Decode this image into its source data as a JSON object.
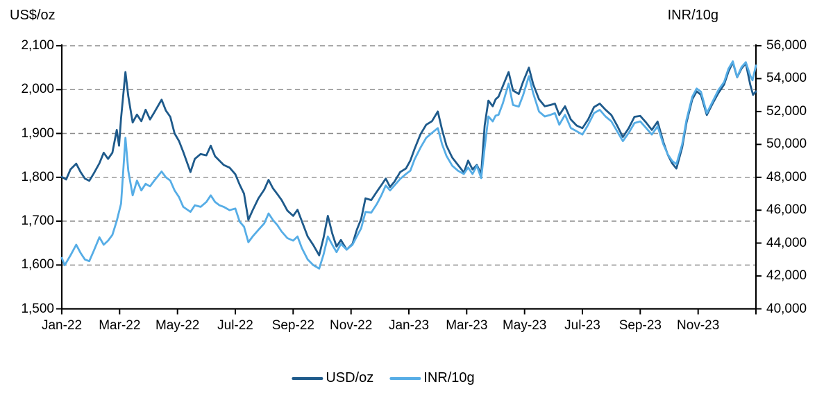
{
  "page": {
    "background": "#ffffff"
  },
  "chart_data": {
    "type": "line",
    "title": "",
    "left_axis": {
      "title": "US$/oz",
      "min": 1500,
      "max": 2100,
      "tick_step": 100,
      "ticks": [
        1500,
        1600,
        1700,
        1800,
        1900,
        2000,
        2100
      ]
    },
    "right_axis": {
      "title": "INR/10g",
      "min": 40000,
      "max": 56000,
      "tick_step": 2000,
      "ticks": [
        40000,
        42000,
        44000,
        46000,
        48000,
        50000,
        52000,
        54000,
        56000
      ]
    },
    "x_axis": {
      "range_months": [
        0,
        24
      ],
      "labels": [
        "Jan-22",
        "Mar-22",
        "May-22",
        "Jul-22",
        "Sep-22",
        "Nov-22",
        "Jan-23",
        "Mar-23",
        "May-23",
        "Jul-23",
        "Sep-23",
        "Nov-23"
      ],
      "label_positions": [
        0,
        2,
        4,
        6,
        8,
        10,
        12,
        14,
        16,
        18,
        20,
        22
      ]
    },
    "grid": {
      "values": [
        1600,
        1700,
        1800,
        1900,
        2000,
        2100
      ],
      "style": "dashed",
      "color": "#8c8c8c"
    },
    "axis_color": "#000000",
    "legend_position": "bottom",
    "series": [
      {
        "name": "USD/oz",
        "axis": "left",
        "color": "#1e5a8b",
        "points": [
          [
            0.0,
            1801
          ],
          [
            0.15,
            1795
          ],
          [
            0.3,
            1818
          ],
          [
            0.5,
            1831
          ],
          [
            0.65,
            1812
          ],
          [
            0.8,
            1797
          ],
          [
            0.95,
            1792
          ],
          [
            1.1,
            1808
          ],
          [
            1.3,
            1832
          ],
          [
            1.45,
            1856
          ],
          [
            1.6,
            1842
          ],
          [
            1.75,
            1856
          ],
          [
            1.9,
            1908
          ],
          [
            1.98,
            1872
          ],
          [
            2.05,
            1935
          ],
          [
            2.2,
            2040
          ],
          [
            2.3,
            1985
          ],
          [
            2.45,
            1925
          ],
          [
            2.6,
            1943
          ],
          [
            2.75,
            1928
          ],
          [
            2.9,
            1954
          ],
          [
            3.05,
            1932
          ],
          [
            3.2,
            1948
          ],
          [
            3.45,
            1977
          ],
          [
            3.6,
            1952
          ],
          [
            3.75,
            1938
          ],
          [
            3.9,
            1900
          ],
          [
            4.05,
            1883
          ],
          [
            4.2,
            1858
          ],
          [
            4.45,
            1812
          ],
          [
            4.6,
            1842
          ],
          [
            4.8,
            1853
          ],
          [
            5.0,
            1850
          ],
          [
            5.15,
            1872
          ],
          [
            5.3,
            1848
          ],
          [
            5.45,
            1838
          ],
          [
            5.6,
            1828
          ],
          [
            5.8,
            1822
          ],
          [
            6.0,
            1807
          ],
          [
            6.15,
            1783
          ],
          [
            6.3,
            1763
          ],
          [
            6.45,
            1703
          ],
          [
            6.6,
            1725
          ],
          [
            6.8,
            1752
          ],
          [
            7.0,
            1772
          ],
          [
            7.15,
            1794
          ],
          [
            7.3,
            1775
          ],
          [
            7.45,
            1762
          ],
          [
            7.6,
            1748
          ],
          [
            7.8,
            1724
          ],
          [
            8.0,
            1712
          ],
          [
            8.15,
            1726
          ],
          [
            8.3,
            1700
          ],
          [
            8.5,
            1665
          ],
          [
            8.7,
            1645
          ],
          [
            8.9,
            1622
          ],
          [
            9.05,
            1662
          ],
          [
            9.2,
            1712
          ],
          [
            9.35,
            1672
          ],
          [
            9.5,
            1642
          ],
          [
            9.65,
            1657
          ],
          [
            9.85,
            1635
          ],
          [
            10.05,
            1648
          ],
          [
            10.2,
            1680
          ],
          [
            10.35,
            1705
          ],
          [
            10.5,
            1752
          ],
          [
            10.7,
            1748
          ],
          [
            10.9,
            1768
          ],
          [
            11.05,
            1782
          ],
          [
            11.2,
            1797
          ],
          [
            11.35,
            1778
          ],
          [
            11.5,
            1790
          ],
          [
            11.7,
            1812
          ],
          [
            11.9,
            1820
          ],
          [
            12.05,
            1838
          ],
          [
            12.2,
            1865
          ],
          [
            12.4,
            1898
          ],
          [
            12.6,
            1920
          ],
          [
            12.8,
            1928
          ],
          [
            13.0,
            1950
          ],
          [
            13.15,
            1908
          ],
          [
            13.3,
            1872
          ],
          [
            13.5,
            1845
          ],
          [
            13.7,
            1828
          ],
          [
            13.9,
            1811
          ],
          [
            14.05,
            1838
          ],
          [
            14.2,
            1818
          ],
          [
            14.35,
            1828
          ],
          [
            14.5,
            1808
          ],
          [
            14.62,
            1918
          ],
          [
            14.75,
            1975
          ],
          [
            14.9,
            1962
          ],
          [
            15.0,
            1978
          ],
          [
            15.1,
            1984
          ],
          [
            15.25,
            2008
          ],
          [
            15.45,
            2040
          ],
          [
            15.6,
            1998
          ],
          [
            15.8,
            1990
          ],
          [
            15.95,
            2018
          ],
          [
            16.15,
            2050
          ],
          [
            16.3,
            2012
          ],
          [
            16.5,
            1978
          ],
          [
            16.7,
            1962
          ],
          [
            16.9,
            1965
          ],
          [
            17.05,
            1968
          ],
          [
            17.2,
            1942
          ],
          [
            17.4,
            1962
          ],
          [
            17.6,
            1932
          ],
          [
            17.8,
            1918
          ],
          [
            18.0,
            1912
          ],
          [
            18.2,
            1932
          ],
          [
            18.4,
            1960
          ],
          [
            18.6,
            1968
          ],
          [
            18.8,
            1954
          ],
          [
            19.0,
            1942
          ],
          [
            19.2,
            1918
          ],
          [
            19.4,
            1892
          ],
          [
            19.6,
            1912
          ],
          [
            19.8,
            1938
          ],
          [
            20.0,
            1940
          ],
          [
            20.2,
            1925
          ],
          [
            20.4,
            1908
          ],
          [
            20.6,
            1927
          ],
          [
            20.8,
            1880
          ],
          [
            20.95,
            1852
          ],
          [
            21.1,
            1832
          ],
          [
            21.25,
            1820
          ],
          [
            21.45,
            1868
          ],
          [
            21.6,
            1925
          ],
          [
            21.8,
            1978
          ],
          [
            21.95,
            1996
          ],
          [
            22.1,
            1988
          ],
          [
            22.3,
            1942
          ],
          [
            22.5,
            1968
          ],
          [
            22.7,
            1992
          ],
          [
            22.9,
            2012
          ],
          [
            23.05,
            2041
          ],
          [
            23.2,
            2062
          ],
          [
            23.35,
            2028
          ],
          [
            23.5,
            2048
          ],
          [
            23.65,
            2060
          ],
          [
            23.8,
            2012
          ],
          [
            23.9,
            1988
          ],
          [
            24.0,
            1996
          ]
        ]
      },
      {
        "name": "INR/10g",
        "axis": "right",
        "color": "#56ade6",
        "points": [
          [
            0.0,
            43100
          ],
          [
            0.1,
            42650
          ],
          [
            0.3,
            43250
          ],
          [
            0.5,
            43900
          ],
          [
            0.65,
            43400
          ],
          [
            0.8,
            43000
          ],
          [
            0.95,
            42900
          ],
          [
            1.1,
            43500
          ],
          [
            1.3,
            44350
          ],
          [
            1.45,
            43900
          ],
          [
            1.6,
            44150
          ],
          [
            1.75,
            44500
          ],
          [
            1.9,
            45350
          ],
          [
            2.05,
            46400
          ],
          [
            2.2,
            50400
          ],
          [
            2.3,
            48400
          ],
          [
            2.45,
            46900
          ],
          [
            2.6,
            47800
          ],
          [
            2.75,
            47200
          ],
          [
            2.9,
            47600
          ],
          [
            3.05,
            47450
          ],
          [
            3.2,
            47800
          ],
          [
            3.45,
            48350
          ],
          [
            3.6,
            48000
          ],
          [
            3.75,
            47800
          ],
          [
            3.9,
            47200
          ],
          [
            4.05,
            46800
          ],
          [
            4.2,
            46200
          ],
          [
            4.45,
            45900
          ],
          [
            4.6,
            46300
          ],
          [
            4.8,
            46200
          ],
          [
            5.0,
            46500
          ],
          [
            5.15,
            46900
          ],
          [
            5.3,
            46500
          ],
          [
            5.45,
            46300
          ],
          [
            5.6,
            46200
          ],
          [
            5.8,
            46000
          ],
          [
            6.0,
            46100
          ],
          [
            6.15,
            45300
          ],
          [
            6.3,
            45000
          ],
          [
            6.45,
            44050
          ],
          [
            6.6,
            44400
          ],
          [
            6.8,
            44800
          ],
          [
            7.0,
            45200
          ],
          [
            7.15,
            45800
          ],
          [
            7.3,
            45400
          ],
          [
            7.45,
            45100
          ],
          [
            7.6,
            44700
          ],
          [
            7.8,
            44300
          ],
          [
            8.0,
            44150
          ],
          [
            8.15,
            44400
          ],
          [
            8.3,
            43700
          ],
          [
            8.5,
            43000
          ],
          [
            8.7,
            42650
          ],
          [
            8.9,
            42450
          ],
          [
            9.05,
            43300
          ],
          [
            9.2,
            44400
          ],
          [
            9.35,
            43900
          ],
          [
            9.5,
            43450
          ],
          [
            9.65,
            43950
          ],
          [
            9.85,
            43600
          ],
          [
            10.05,
            43900
          ],
          [
            10.2,
            44400
          ],
          [
            10.35,
            44900
          ],
          [
            10.5,
            45900
          ],
          [
            10.7,
            45850
          ],
          [
            10.9,
            46400
          ],
          [
            11.05,
            46900
          ],
          [
            11.2,
            47500
          ],
          [
            11.35,
            47200
          ],
          [
            11.5,
            47500
          ],
          [
            11.7,
            47900
          ],
          [
            11.9,
            48200
          ],
          [
            12.05,
            48400
          ],
          [
            12.2,
            49100
          ],
          [
            12.4,
            49800
          ],
          [
            12.6,
            50400
          ],
          [
            12.8,
            50700
          ],
          [
            13.0,
            50990
          ],
          [
            13.15,
            50000
          ],
          [
            13.3,
            49300
          ],
          [
            13.5,
            48700
          ],
          [
            13.7,
            48400
          ],
          [
            13.9,
            48200
          ],
          [
            14.05,
            48600
          ],
          [
            14.2,
            48200
          ],
          [
            14.35,
            48700
          ],
          [
            14.5,
            47950
          ],
          [
            14.62,
            49800
          ],
          [
            14.75,
            51700
          ],
          [
            14.9,
            51400
          ],
          [
            15.0,
            51750
          ],
          [
            15.1,
            51800
          ],
          [
            15.25,
            52500
          ],
          [
            15.45,
            53700
          ],
          [
            15.6,
            52400
          ],
          [
            15.8,
            52300
          ],
          [
            15.95,
            53000
          ],
          [
            16.15,
            54150
          ],
          [
            16.3,
            53100
          ],
          [
            16.5,
            52000
          ],
          [
            16.7,
            51700
          ],
          [
            16.9,
            51800
          ],
          [
            17.05,
            51900
          ],
          [
            17.2,
            51200
          ],
          [
            17.4,
            51800
          ],
          [
            17.6,
            51000
          ],
          [
            17.8,
            50800
          ],
          [
            18.0,
            50600
          ],
          [
            18.2,
            51200
          ],
          [
            18.4,
            51900
          ],
          [
            18.6,
            52100
          ],
          [
            18.8,
            51700
          ],
          [
            19.0,
            51400
          ],
          [
            19.2,
            50800
          ],
          [
            19.4,
            50200
          ],
          [
            19.6,
            50700
          ],
          [
            19.8,
            51300
          ],
          [
            20.0,
            51400
          ],
          [
            20.2,
            51000
          ],
          [
            20.4,
            50600
          ],
          [
            20.6,
            51100
          ],
          [
            20.8,
            50000
          ],
          [
            20.95,
            49400
          ],
          [
            21.1,
            49000
          ],
          [
            21.25,
            48800
          ],
          [
            21.45,
            50000
          ],
          [
            21.6,
            51500
          ],
          [
            21.8,
            52900
          ],
          [
            21.95,
            53400
          ],
          [
            22.1,
            53200
          ],
          [
            22.3,
            51900
          ],
          [
            22.5,
            52600
          ],
          [
            22.7,
            53300
          ],
          [
            22.9,
            53800
          ],
          [
            23.05,
            54600
          ],
          [
            23.2,
            55050
          ],
          [
            23.35,
            54100
          ],
          [
            23.5,
            54700
          ],
          [
            23.65,
            55000
          ],
          [
            23.8,
            54200
          ],
          [
            23.88,
            53900
          ],
          [
            24.0,
            54800
          ]
        ]
      }
    ]
  }
}
